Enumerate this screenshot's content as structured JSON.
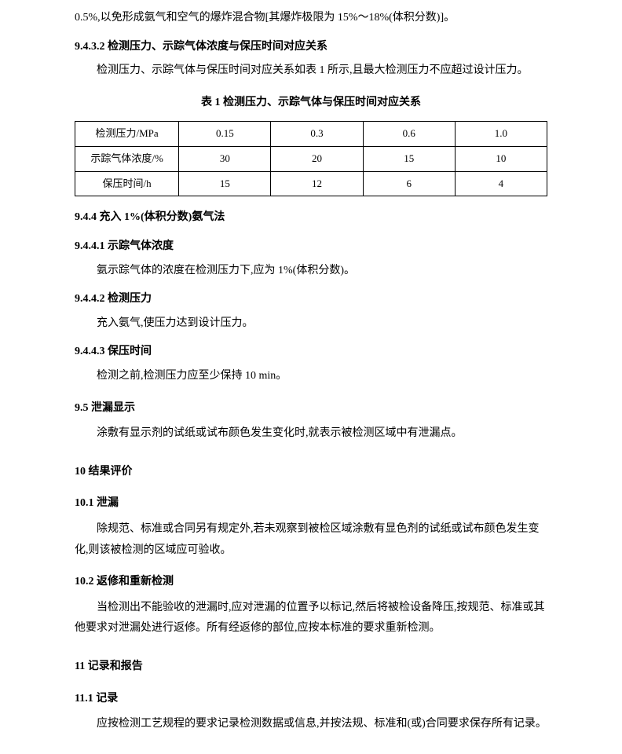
{
  "intro_line": "0.5%,以免形成氨气和空气的爆炸混合物[其爆炸极限为 15%～18%(体积分数)]。",
  "sec_9_4_3_2": {
    "heading": "9.4.3.2  检测压力、示踪气体浓度与保压时间对应关系",
    "body": "检测压力、示踪气体与保压时间对应关系如表 1 所示,且最大检测压力不应超过设计压力。"
  },
  "table1": {
    "caption": "表  1   检测压力、示踪气体与保压时间对应关系",
    "rows": [
      {
        "label": "检测压力/MPa",
        "c1": "0.15",
        "c2": "0.3",
        "c3": "0.6",
        "c4": "1.0"
      },
      {
        "label": "示踪气体浓度/%",
        "c1": "30",
        "c2": "20",
        "c3": "15",
        "c4": "10"
      },
      {
        "label": "保压时间/h",
        "c1": "15",
        "c2": "12",
        "c3": "6",
        "c4": "4"
      }
    ]
  },
  "sec_9_4_4": "9.4.4  充入 1%(体积分数)氨气法",
  "sec_9_4_4_1": {
    "heading": "9.4.4.1  示踪气体浓度",
    "body": "氨示踪气体的浓度在检测压力下,应为 1%(体积分数)。"
  },
  "sec_9_4_4_2": {
    "heading": "9.4.4.2  检测压力",
    "body": "充入氨气,使压力达到设计压力。"
  },
  "sec_9_4_4_3": {
    "heading": "9.4.4.3  保压时间",
    "body": "检测之前,检测压力应至少保持 10 min。"
  },
  "sec_9_5": {
    "heading": "9.5  泄漏显示",
    "body": "涂敷有显示剂的试纸或试布颜色发生变化时,就表示被检测区域中有泄漏点。"
  },
  "sec_10": "10  结果评价",
  "sec_10_1": {
    "heading": "10.1  泄漏",
    "body": "除规范、标准或合同另有规定外,若未观察到被检区域涂敷有显色剂的试纸或试布颜色发生变化,则该被检测的区域应可验收。"
  },
  "sec_10_2": {
    "heading": "10.2  返修和重新检测",
    "body": "当检测出不能验收的泄漏时,应对泄漏的位置予以标记,然后将被检设备降压,按规范、标准或其他要求对泄漏处进行返修。所有经返修的部位,应按本标准的要求重新检测。"
  },
  "sec_11": "11  记录和报告",
  "sec_11_1": {
    "heading": "11.1  记录",
    "body": "应按检测工艺规程的要求记录检测数据或信息,并按法规、标准和(或)合同要求保存所有记录。"
  }
}
